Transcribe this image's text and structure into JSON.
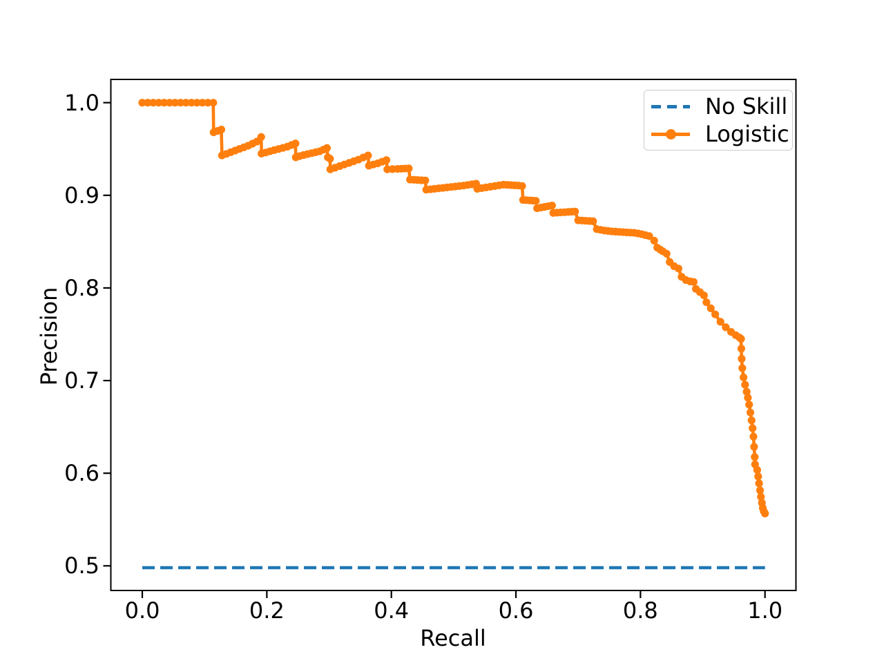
{
  "figure": {
    "xlabel": "Recall",
    "ylabel": "Precision"
  },
  "legend": {
    "position": "upper right",
    "items": [
      {
        "label": "No Skill",
        "style": "dashed",
        "color": "#1f77b4"
      },
      {
        "label": "Logistic",
        "style": "solid-marker",
        "color": "#ff7f0e"
      }
    ]
  },
  "chart_data": {
    "type": "line",
    "title": "",
    "xlabel": "Recall",
    "ylabel": "Precision",
    "xlim": [
      -0.0505,
      1.0497
    ],
    "ylim": [
      0.4734,
      1.0251
    ],
    "grid": false,
    "legend_position": "upper right",
    "xticks": {
      "values": [
        0.0,
        0.2,
        0.4,
        0.6,
        0.8,
        1.0
      ],
      "labels": [
        "0.0",
        "0.2",
        "0.4",
        "0.6",
        "0.8",
        "1.0"
      ]
    },
    "yticks": {
      "values": [
        0.5,
        0.6,
        0.7,
        0.8,
        0.9,
        1.0
      ],
      "labels": [
        "0.5",
        "0.6",
        "0.7",
        "0.8",
        "0.9",
        "1.0"
      ]
    },
    "series": [
      {
        "name": "No Skill",
        "kind": "hline",
        "color": "#1f77b4",
        "linestyle": "dashed",
        "y": 0.498,
        "x_range": [
          0.0,
          1.0
        ]
      },
      {
        "name": "Logistic",
        "kind": "line-markers",
        "color": "#ff7f0e",
        "linestyle": "solid",
        "points": [
          [
            0.0,
            1.0
          ],
          [
            0.114,
            1.0
          ],
          [
            0.1145,
            0.968
          ],
          [
            0.121,
            0.9695
          ],
          [
            0.127,
            0.971
          ],
          [
            0.128,
            0.943
          ],
          [
            0.142,
            0.9465
          ],
          [
            0.156,
            0.95
          ],
          [
            0.17,
            0.9535
          ],
          [
            0.184,
            0.958
          ],
          [
            0.191,
            0.963
          ],
          [
            0.1915,
            0.945
          ],
          [
            0.205,
            0.9475
          ],
          [
            0.219,
            0.95
          ],
          [
            0.233,
            0.9525
          ],
          [
            0.246,
            0.956
          ],
          [
            0.2465,
            0.941
          ],
          [
            0.259,
            0.9435
          ],
          [
            0.272,
            0.9455
          ],
          [
            0.285,
            0.9475
          ],
          [
            0.2965,
            0.951
          ],
          [
            0.298,
            0.941
          ],
          [
            0.3015,
            0.9395
          ],
          [
            0.302,
            0.928
          ],
          [
            0.317,
            0.9315
          ],
          [
            0.332,
            0.935
          ],
          [
            0.347,
            0.9385
          ],
          [
            0.3625,
            0.943
          ],
          [
            0.364,
            0.932
          ],
          [
            0.378,
            0.9345
          ],
          [
            0.392,
            0.938
          ],
          [
            0.3935,
            0.928
          ],
          [
            0.41,
            0.9285
          ],
          [
            0.428,
            0.929
          ],
          [
            0.43,
            0.917
          ],
          [
            0.442,
            0.9165
          ],
          [
            0.4545,
            0.916
          ],
          [
            0.456,
            0.906
          ],
          [
            0.476,
            0.9075
          ],
          [
            0.496,
            0.909
          ],
          [
            0.516,
            0.9105
          ],
          [
            0.536,
            0.9125
          ],
          [
            0.538,
            0.907
          ],
          [
            0.552,
            0.9085
          ],
          [
            0.566,
            0.91
          ],
          [
            0.58,
            0.9115
          ],
          [
            0.592,
            0.911
          ],
          [
            0.604,
            0.9105
          ],
          [
            0.61,
            0.91
          ],
          [
            0.6115,
            0.895
          ],
          [
            0.622,
            0.8945
          ],
          [
            0.632,
            0.894
          ],
          [
            0.634,
            0.886
          ],
          [
            0.646,
            0.8875
          ],
          [
            0.658,
            0.889
          ],
          [
            0.66,
            0.881
          ],
          [
            0.672,
            0.8815
          ],
          [
            0.684,
            0.882
          ],
          [
            0.695,
            0.8825
          ],
          [
            0.7,
            0.873
          ],
          [
            0.712,
            0.8725
          ],
          [
            0.724,
            0.872
          ],
          [
            0.73,
            0.8635
          ],
          [
            0.742,
            0.862
          ],
          [
            0.754,
            0.861
          ],
          [
            0.766,
            0.8605
          ],
          [
            0.778,
            0.86
          ],
          [
            0.79,
            0.8595
          ],
          [
            0.802,
            0.858
          ],
          [
            0.814,
            0.856
          ],
          [
            0.822,
            0.851
          ],
          [
            0.827,
            0.8435
          ],
          [
            0.836,
            0.8395
          ],
          [
            0.842,
            0.837
          ],
          [
            0.847,
            0.828
          ],
          [
            0.854,
            0.8235
          ],
          [
            0.861,
            0.821
          ],
          [
            0.866,
            0.812
          ],
          [
            0.873,
            0.8085
          ],
          [
            0.88,
            0.807
          ],
          [
            0.8855,
            0.8065
          ],
          [
            0.889,
            0.799
          ],
          [
            0.8955,
            0.7955
          ],
          [
            0.902,
            0.792
          ],
          [
            0.906,
            0.7845
          ],
          [
            0.913,
            0.778
          ],
          [
            0.92,
            0.7715
          ],
          [
            0.9285,
            0.7635
          ],
          [
            0.937,
            0.7575
          ],
          [
            0.9455,
            0.7525
          ],
          [
            0.953,
            0.749
          ],
          [
            0.959,
            0.7465
          ],
          [
            0.9615,
            0.745
          ],
          [
            0.962,
            0.7345
          ],
          [
            0.9625,
            0.7235
          ],
          [
            0.9635,
            0.7135
          ],
          [
            0.9655,
            0.7035
          ],
          [
            0.968,
            0.6955
          ],
          [
            0.9705,
            0.688
          ],
          [
            0.9725,
            0.6815
          ],
          [
            0.9745,
            0.674
          ],
          [
            0.9765,
            0.6655
          ],
          [
            0.9785,
            0.657
          ],
          [
            0.98,
            0.6485
          ],
          [
            0.9815,
            0.6395
          ],
          [
            0.9825,
            0.6285
          ],
          [
            0.9835,
            0.6175
          ],
          [
            0.984,
            0.6095
          ],
          [
            0.9875,
            0.6035
          ],
          [
            0.989,
            0.5965
          ],
          [
            0.9905,
            0.589
          ],
          [
            0.992,
            0.5815
          ],
          [
            0.9935,
            0.5745
          ],
          [
            0.995,
            0.568
          ],
          [
            0.9965,
            0.5625
          ],
          [
            0.998,
            0.559
          ],
          [
            1.0,
            0.5565
          ]
        ]
      }
    ]
  }
}
